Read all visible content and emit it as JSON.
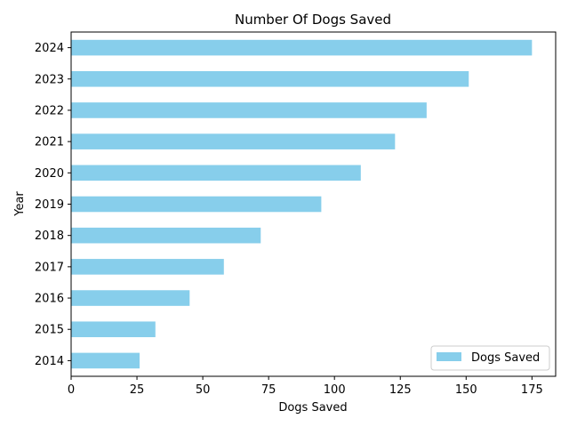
{
  "chart_data": {
    "type": "bar",
    "orientation": "horizontal",
    "title": "Number Of Dogs Saved",
    "xlabel": "Dogs Saved",
    "ylabel": "Year",
    "categories": [
      "2014",
      "2015",
      "2016",
      "2017",
      "2018",
      "2019",
      "2020",
      "2021",
      "2022",
      "2023",
      "2024"
    ],
    "series": [
      {
        "name": "Dogs Saved",
        "color": "#87ceeb",
        "values": [
          26,
          32,
          45,
          58,
          72,
          95,
          110,
          123,
          135,
          151,
          175
        ]
      }
    ],
    "xlim": [
      0,
      184
    ],
    "xticks": [
      0,
      25,
      50,
      75,
      100,
      125,
      150,
      175
    ],
    "grid": false,
    "legend_position": "lower right"
  }
}
